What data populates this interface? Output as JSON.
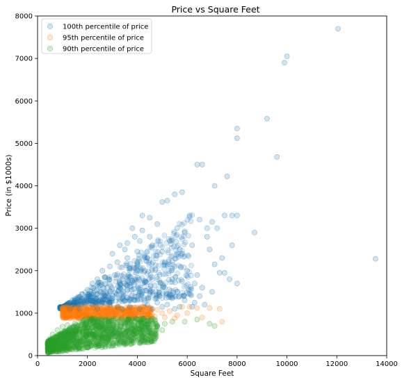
{
  "chart_data": {
    "type": "scatter",
    "title": "Price vs Square Feet",
    "xlabel": "Square Feet",
    "ylabel": "Price (in $1000s)",
    "xlim": [
      0,
      14000
    ],
    "ylim": [
      0,
      8000
    ],
    "x_ticks": [
      0,
      2000,
      4000,
      6000,
      8000,
      10000,
      12000,
      14000
    ],
    "y_ticks": [
      0,
      1000,
      2000,
      3000,
      4000,
      5000,
      6000,
      7000,
      8000
    ],
    "grid": false,
    "legend_position": "top-left",
    "series": [
      {
        "name": "100th percentile of price",
        "color": "#1f77b4",
        "points": [
          [
            12050,
            7700
          ],
          [
            10000,
            7050
          ],
          [
            9900,
            6900
          ],
          [
            8000,
            5350
          ],
          [
            8000,
            5120
          ],
          [
            9200,
            5580
          ],
          [
            9600,
            4680
          ],
          [
            13550,
            2280
          ],
          [
            7600,
            4220
          ],
          [
            7100,
            4000
          ],
          [
            6400,
            4500
          ],
          [
            6600,
            4500
          ],
          [
            5800,
            3850
          ],
          [
            5500,
            3800
          ],
          [
            5000,
            3620
          ],
          [
            5200,
            3650
          ],
          [
            4200,
            3300
          ],
          [
            4500,
            3250
          ],
          [
            6100,
            3300
          ],
          [
            7000,
            3150
          ],
          [
            7500,
            3300
          ],
          [
            7800,
            3300
          ],
          [
            8000,
            3300
          ],
          [
            7200,
            3000
          ],
          [
            8700,
            2900
          ],
          [
            6500,
            3200
          ],
          [
            6800,
            3000
          ],
          [
            5600,
            3000
          ],
          [
            5900,
            2900
          ],
          [
            4800,
            3100
          ],
          [
            3800,
            3000
          ],
          [
            3900,
            2800
          ],
          [
            4100,
            2700
          ],
          [
            4600,
            2600
          ],
          [
            5300,
            2700
          ],
          [
            5700,
            2500
          ],
          [
            6200,
            2600
          ],
          [
            6900,
            2500
          ],
          [
            7400,
            2300
          ],
          [
            7100,
            2150
          ],
          [
            7800,
            2600
          ],
          [
            3300,
            2600
          ],
          [
            3500,
            2500
          ],
          [
            3000,
            2400
          ],
          [
            3600,
            2300
          ],
          [
            4000,
            2200
          ],
          [
            4400,
            2300
          ],
          [
            5100,
            2200
          ],
          [
            5500,
            2100
          ],
          [
            6000,
            2000
          ],
          [
            6400,
            1900
          ],
          [
            7300,
            1950
          ],
          [
            7500,
            1950
          ],
          [
            7700,
            1800
          ],
          [
            8000,
            1700
          ],
          [
            3200,
            2200
          ],
          [
            2900,
            2100
          ],
          [
            3700,
            2050
          ],
          [
            4300,
            2000
          ],
          [
            4900,
            1900
          ],
          [
            5400,
            1800
          ],
          [
            5800,
            1750
          ],
          [
            6300,
            1700
          ],
          [
            6600,
            1600
          ],
          [
            7000,
            1500
          ],
          [
            2600,
            2000
          ],
          [
            2700,
            1850
          ],
          [
            3100,
            1900
          ],
          [
            3400,
            1800
          ],
          [
            3800,
            1750
          ],
          [
            4200,
            1700
          ],
          [
            4700,
            1650
          ],
          [
            5100,
            1600
          ],
          [
            5600,
            1500
          ],
          [
            6100,
            1450
          ],
          [
            6500,
            1400
          ],
          [
            2400,
            1800
          ],
          [
            2200,
            1700
          ],
          [
            2500,
            1650
          ],
          [
            2800,
            1600
          ],
          [
            3300,
            1600
          ],
          [
            3600,
            1550
          ],
          [
            4100,
            1500
          ],
          [
            4500,
            1450
          ],
          [
            4900,
            1400
          ],
          [
            5400,
            1350
          ],
          [
            5900,
            1300
          ],
          [
            6300,
            1250
          ],
          [
            6700,
            1200
          ],
          [
            2000,
            1550
          ],
          [
            1800,
            1450
          ],
          [
            2100,
            1400
          ],
          [
            2300,
            1350
          ],
          [
            2700,
            1400
          ],
          [
            3000,
            1350
          ],
          [
            3500,
            1300
          ],
          [
            3900,
            1300
          ],
          [
            4300,
            1250
          ],
          [
            4800,
            1250
          ],
          [
            5200,
            1200
          ],
          [
            5700,
            1150
          ],
          [
            6200,
            1150
          ],
          [
            1500,
            1300
          ],
          [
            1600,
            1200
          ],
          [
            1900,
            1250
          ],
          [
            2200,
            1200
          ],
          [
            2600,
            1250
          ],
          [
            2900,
            1200
          ],
          [
            3200,
            1150
          ],
          [
            3700,
            1150
          ],
          [
            4100,
            1100
          ],
          [
            4600,
            1100
          ],
          [
            5000,
            1150
          ],
          [
            5500,
            1100
          ],
          [
            1300,
            1100
          ],
          [
            1700,
            1100
          ],
          [
            2400,
            1100
          ],
          [
            3400,
            1100
          ],
          [
            4400,
            1200
          ],
          [
            4000,
            2450
          ],
          [
            4500,
            2800
          ],
          [
            3600,
            2650
          ],
          [
            5000,
            2450
          ],
          [
            4200,
            2950
          ],
          [
            6800,
            2800
          ]
        ]
      },
      {
        "name": "95th percentile of price",
        "color": "#ff7f0e",
        "points": [
          [
            5800,
            1150
          ],
          [
            6100,
            1150
          ],
          [
            6400,
            1120
          ],
          [
            6900,
            1120
          ],
          [
            7300,
            1100
          ],
          [
            7400,
            800
          ],
          [
            6600,
            900
          ],
          [
            5600,
            950
          ],
          [
            6000,
            1000
          ],
          [
            5300,
            1050
          ],
          [
            5000,
            1000
          ],
          [
            4800,
            1080
          ],
          [
            4500,
            1050
          ],
          [
            4200,
            1080
          ],
          [
            3900,
            1060
          ],
          [
            3600,
            1070
          ],
          [
            3300,
            1060
          ],
          [
            3000,
            1050
          ],
          [
            2700,
            1050
          ],
          [
            2400,
            1040
          ],
          [
            2100,
            1030
          ],
          [
            1800,
            1000
          ],
          [
            1500,
            960
          ],
          [
            1200,
            920
          ],
          [
            4400,
            950
          ],
          [
            4700,
            920
          ],
          [
            3800,
            940
          ],
          [
            3400,
            950
          ],
          [
            2900,
            950
          ],
          [
            2500,
            950
          ],
          [
            2000,
            930
          ],
          [
            1600,
            900
          ],
          [
            1300,
            880
          ],
          [
            5100,
            900
          ],
          [
            5500,
            880
          ]
        ]
      },
      {
        "name": "90th percentile of price",
        "color": "#2ca02c",
        "points": [
          [
            6400,
            850
          ],
          [
            6900,
            750
          ],
          [
            7100,
            700
          ],
          [
            5900,
            800
          ],
          [
            5400,
            800
          ],
          [
            5100,
            750
          ],
          [
            4800,
            700
          ],
          [
            5000,
            600
          ],
          [
            4600,
            800
          ],
          [
            4300,
            820
          ],
          [
            4100,
            650
          ],
          [
            3900,
            800
          ],
          [
            3600,
            820
          ],
          [
            3300,
            800
          ],
          [
            3000,
            820
          ],
          [
            2700,
            810
          ],
          [
            2400,
            800
          ],
          [
            2100,
            800
          ],
          [
            1800,
            780
          ],
          [
            1500,
            760
          ],
          [
            1200,
            720
          ],
          [
            1000,
            680
          ],
          [
            800,
            600
          ],
          [
            600,
            500
          ],
          [
            500,
            400
          ],
          [
            400,
            250
          ],
          [
            700,
            300
          ],
          [
            900,
            250
          ],
          [
            1100,
            300
          ],
          [
            1400,
            350
          ],
          [
            1700,
            400
          ],
          [
            2000,
            420
          ],
          [
            2300,
            450
          ],
          [
            2600,
            480
          ],
          [
            2900,
            500
          ],
          [
            3200,
            520
          ],
          [
            3500,
            550
          ],
          [
            3800,
            580
          ],
          [
            4200,
            600
          ],
          [
            4500,
            640
          ],
          [
            800,
            150
          ],
          [
            1000,
            100
          ],
          [
            1300,
            200
          ],
          [
            1600,
            250
          ],
          [
            1900,
            300
          ]
        ]
      }
    ]
  }
}
